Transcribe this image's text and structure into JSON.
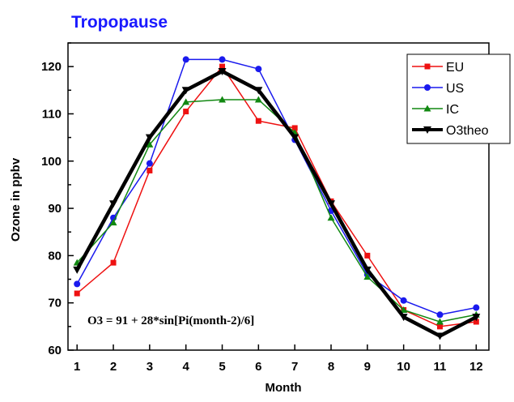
{
  "chart_data": {
    "type": "line",
    "title": "Tropopause",
    "title_color": "#1a1aff",
    "xlabel": "Month",
    "ylabel": "Ozone in ppbv",
    "x": [
      1,
      2,
      3,
      4,
      5,
      6,
      7,
      8,
      9,
      10,
      11,
      12
    ],
    "x_tick_labels": [
      "1",
      "2",
      "3",
      "4",
      "5",
      "6",
      "7",
      "8",
      "9",
      "10",
      "11",
      "12"
    ],
    "xlim": [
      0.75,
      12.35
    ],
    "ylim": [
      60,
      125
    ],
    "y_tick_labels": [
      "60",
      "70",
      "80",
      "90",
      "100",
      "110",
      "120"
    ],
    "grid": false,
    "legend_placement": "top-right",
    "annotation": "O3 = 91 + 28*sin[Pi(month-2)/6]",
    "series": [
      {
        "name": "EU",
        "color": "#ee1111",
        "marker": "square",
        "bold": false,
        "values": [
          72,
          78.5,
          98,
          110.5,
          120,
          108.5,
          107,
          91.5,
          80,
          68.5,
          65,
          66
        ]
      },
      {
        "name": "US",
        "color": "#1a1aee",
        "marker": "circle",
        "bold": false,
        "values": [
          74,
          88,
          99.5,
          121.5,
          121.5,
          119.5,
          104.5,
          89.5,
          76,
          70.5,
          67.5,
          69
        ]
      },
      {
        "name": "IC",
        "color": "#118811",
        "marker": "triangle-up",
        "bold": false,
        "values": [
          78.5,
          87,
          103.5,
          112.5,
          113,
          113,
          106,
          88,
          75.5,
          68.5,
          66,
          67.5
        ]
      },
      {
        "name": "O3theo",
        "color": "#000000",
        "marker": "triangle-down",
        "bold": true,
        "values": [
          77,
          91,
          105,
          115,
          119,
          115,
          105,
          91,
          77,
          67,
          63,
          67
        ]
      }
    ]
  }
}
